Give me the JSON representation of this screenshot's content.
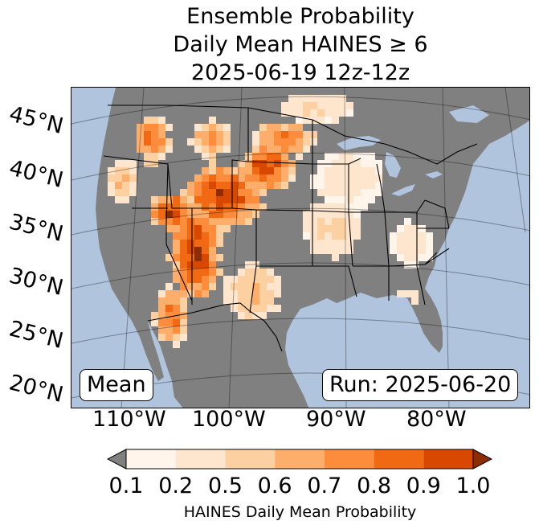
{
  "title": {
    "line1": "Ensemble Probability",
    "line2": "Daily Mean HAINES ≥ 6",
    "line3": "2025-06-19 12z-12z"
  },
  "map": {
    "latitude_labels": [
      "45°N",
      "40°N",
      "35°N",
      "30°N",
      "25°N",
      "20°N"
    ],
    "longitude_labels": [
      "110°W",
      "100°W",
      "90°W",
      "80°W"
    ],
    "stat_label": "Mean",
    "run_label": "Run: 2025-06-20",
    "colors": {
      "ocean": "#b0c4de",
      "land": "#808080",
      "lakes": "#b0c4de"
    }
  },
  "colorbar": {
    "ticks": [
      "0.1",
      "0.2",
      "0.5",
      "0.6",
      "0.7",
      "0.8",
      "0.9",
      "1.0"
    ],
    "colors": [
      "#fff5eb",
      "#fee6ce",
      "#fdd0a2",
      "#fdae6b",
      "#fd8d3c",
      "#f16913",
      "#d94801",
      "#8c2d04"
    ],
    "under_color": "#808080",
    "label": "HAINES Daily Mean Probability"
  }
}
